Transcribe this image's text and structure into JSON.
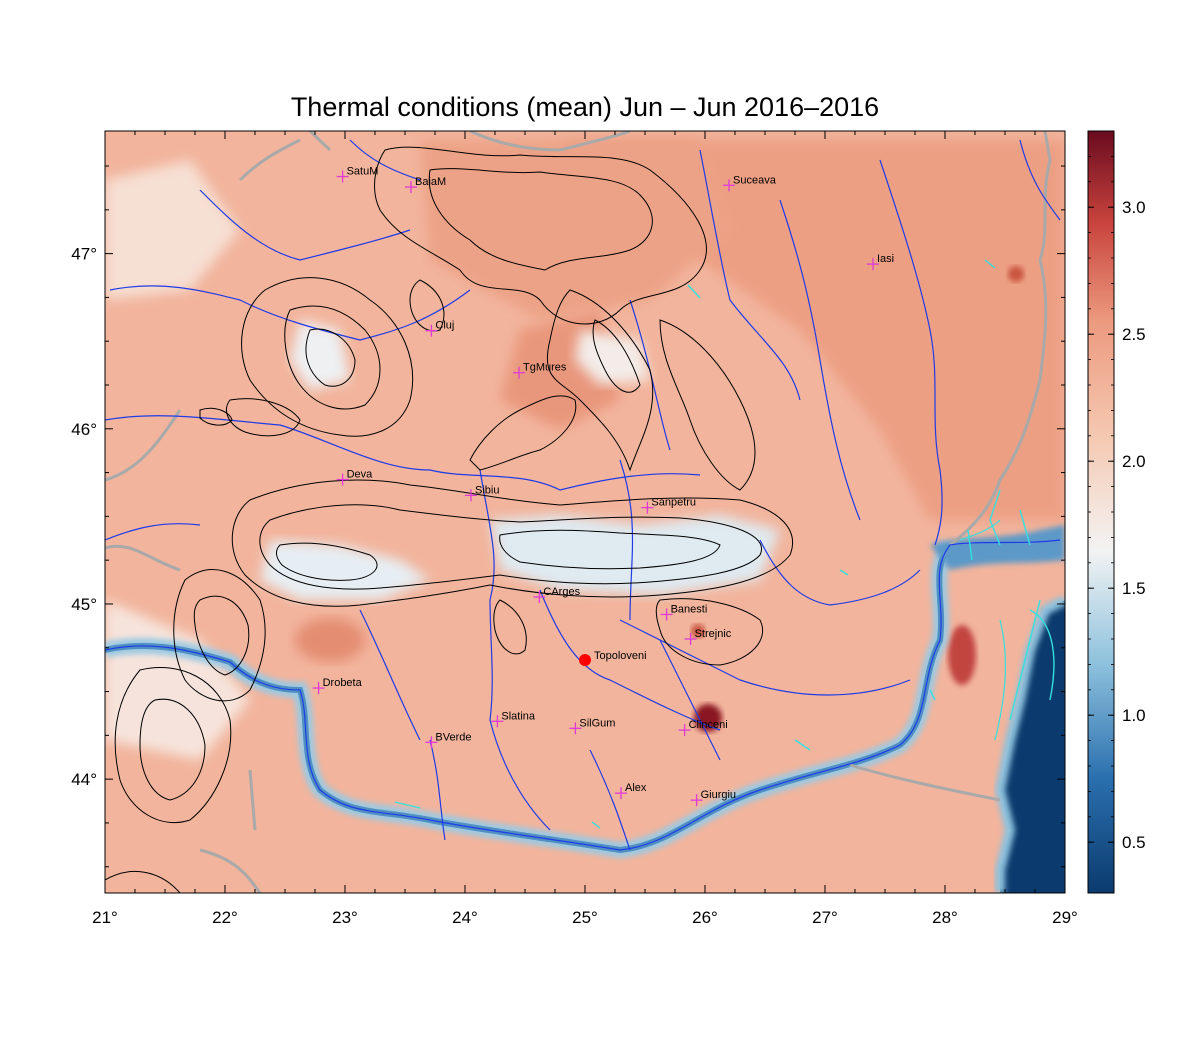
{
  "title": "Thermal conditions (mean) Jun – Jun  2016–2016",
  "map": {
    "lon_range": [
      21,
      29
    ],
    "lat_range": [
      43.35,
      47.7
    ],
    "lon_ticks": [
      {
        "value": 21,
        "label": "21°"
      },
      {
        "value": 22,
        "label": "22°"
      },
      {
        "value": 23,
        "label": "23°"
      },
      {
        "value": 24,
        "label": "24°"
      },
      {
        "value": 25,
        "label": "25°"
      },
      {
        "value": 26,
        "label": "26°"
      },
      {
        "value": 27,
        "label": "27°"
      },
      {
        "value": 28,
        "label": "28°"
      },
      {
        "value": 29,
        "label": "29°"
      }
    ],
    "lat_ticks": [
      {
        "value": 44,
        "label": "44°"
      },
      {
        "value": 45,
        "label": "45°"
      },
      {
        "value": 46,
        "label": "46°"
      },
      {
        "value": 47,
        "label": "47°"
      }
    ],
    "colors": {
      "low": "#0b3b6e",
      "mid_low": "#8dc1dd",
      "mid": "#f3f3f3",
      "mid_high": "#ec9a7f",
      "high": "#6a0b1f",
      "river": "#1f3be8",
      "border": "#a9a9a9",
      "contour": "#000000",
      "city_marker": "#e03bd6",
      "highlight": "#ff0000",
      "lake": "#33e0e0"
    },
    "cities": [
      {
        "name": "SatuM",
        "lon": 22.98,
        "lat": 47.44
      },
      {
        "name": "BaiaM",
        "lon": 23.55,
        "lat": 47.38
      },
      {
        "name": "Suceava",
        "lon": 26.2,
        "lat": 47.39
      },
      {
        "name": "Iasi",
        "lon": 27.4,
        "lat": 46.94
      },
      {
        "name": "Cluj",
        "lon": 23.72,
        "lat": 46.56
      },
      {
        "name": "TgMures",
        "lon": 24.45,
        "lat": 46.32
      },
      {
        "name": "Deva",
        "lon": 22.98,
        "lat": 45.71
      },
      {
        "name": "Sibiu",
        "lon": 24.05,
        "lat": 45.62
      },
      {
        "name": "Sanpetru",
        "lon": 25.52,
        "lat": 45.55
      },
      {
        "name": "CArges",
        "lon": 24.62,
        "lat": 45.04
      },
      {
        "name": "Banesti",
        "lon": 25.68,
        "lat": 44.94
      },
      {
        "name": "Strejnic",
        "lon": 25.88,
        "lat": 44.8
      },
      {
        "name": "Drobeta",
        "lon": 22.78,
        "lat": 44.52
      },
      {
        "name": "Slatina",
        "lon": 24.27,
        "lat": 44.33
      },
      {
        "name": "SilGum",
        "lon": 24.92,
        "lat": 44.29
      },
      {
        "name": "Clinceni",
        "lon": 25.83,
        "lat": 44.28
      },
      {
        "name": "BVerde",
        "lon": 23.72,
        "lat": 44.21
      },
      {
        "name": "Alex",
        "lon": 25.3,
        "lat": 43.92
      },
      {
        "name": "Giurgiu",
        "lon": 25.93,
        "lat": 43.88
      }
    ],
    "highlight_city": {
      "name": "Topoloveni",
      "lon": 25.0,
      "lat": 44.68
    }
  },
  "colorbar": {
    "min": 0.3,
    "max": 3.3,
    "ticks": [
      {
        "value": 0.5,
        "label": "0.5"
      },
      {
        "value": 1.0,
        "label": "1.0"
      },
      {
        "value": 1.5,
        "label": "1.5"
      },
      {
        "value": 2.0,
        "label": "2.0"
      },
      {
        "value": 2.5,
        "label": "2.5"
      },
      {
        "value": 3.0,
        "label": "3.0"
      }
    ]
  }
}
